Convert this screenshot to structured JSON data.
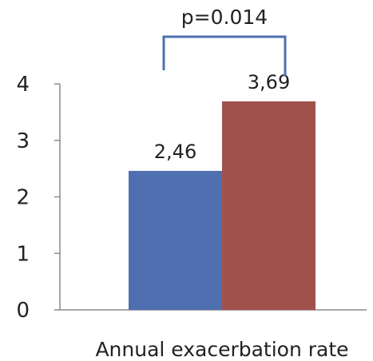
{
  "chart_data": {
    "type": "bar",
    "categories": [
      "Annual exacerbation rate"
    ],
    "series": [
      {
        "values": [
          2.46
        ],
        "labels": [
          "2,46"
        ],
        "color": "#4F6FB0"
      },
      {
        "values": [
          3.69
        ],
        "labels": [
          "3,69"
        ],
        "color": "#A0514C"
      }
    ],
    "ylim": [
      0,
      4
    ],
    "yticks": [
      "0",
      "1",
      "2",
      "3",
      "4"
    ],
    "grid": false,
    "legend": "none",
    "annotation": {
      "text": "p=0.014",
      "color": "#4F6FB0"
    },
    "axis_color": "#8C8C8C"
  }
}
